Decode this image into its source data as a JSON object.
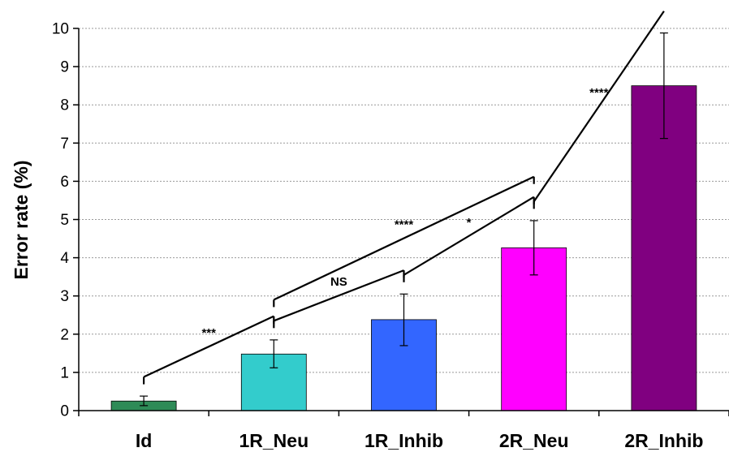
{
  "chart_data": {
    "type": "bar",
    "title": "",
    "xlabel": "",
    "ylabel": "Error rate  (%)",
    "ylim": [
      0,
      10
    ],
    "yticks": [
      0,
      1,
      2,
      3,
      4,
      5,
      6,
      7,
      8,
      9,
      10
    ],
    "grid": true,
    "categories": [
      "Id",
      "1R_Neu",
      "1R_Inhib",
      "2R_Neu",
      "2R_Inhib"
    ],
    "values": [
      0.25,
      1.48,
      2.38,
      4.26,
      8.5
    ],
    "error_low": [
      0.13,
      1.12,
      1.7,
      3.55,
      7.12
    ],
    "error_high": [
      0.38,
      1.85,
      3.05,
      4.97,
      9.88
    ],
    "colors": [
      "#2e8b57",
      "#33cccc",
      "#3366ff",
      "#ff00ff",
      "#800080"
    ],
    "significance": [
      {
        "from": "Id",
        "to": "1R_Neu",
        "label": "***"
      },
      {
        "from": "1R_Neu",
        "to": "1R_Inhib",
        "label": "NS"
      },
      {
        "from": "1R_Inhib",
        "to": "2R_Neu",
        "label": "*"
      },
      {
        "from": "1R_Neu",
        "to": "2R_Neu",
        "label": "****"
      },
      {
        "from": "2R_Neu",
        "to": "2R_Inhib",
        "label": "****"
      }
    ]
  }
}
